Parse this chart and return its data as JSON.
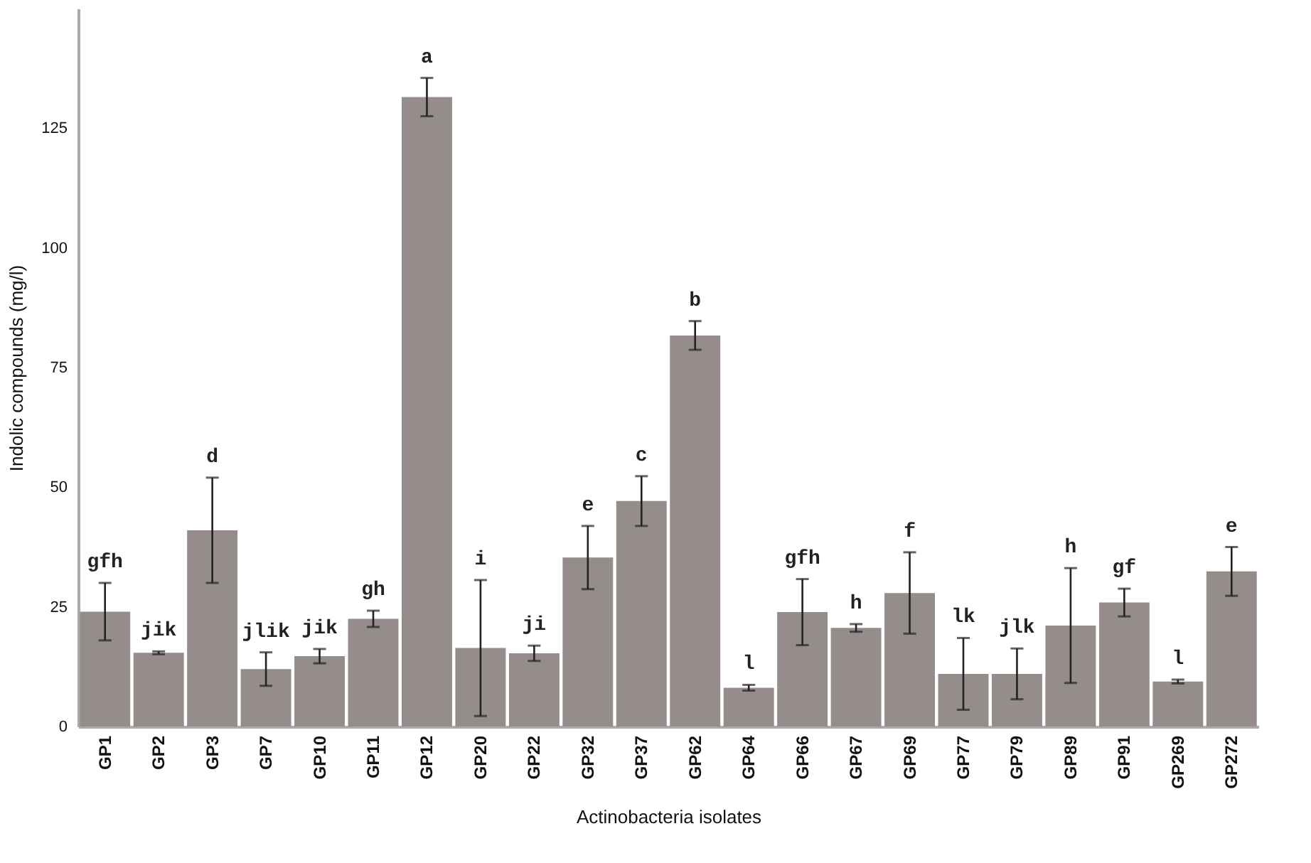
{
  "chart_data": {
    "type": "bar",
    "xlabel": "Actinobacteria isolates",
    "ylabel": "Indolic compounds (mg/l)",
    "categories": [
      "GP1",
      "GP2",
      "GP3",
      "GP7",
      "GP10",
      "GP11",
      "GP12",
      "GP20",
      "GP22",
      "GP32",
      "GP37",
      "GP62",
      "GP64",
      "GP66",
      "GP67",
      "GP69",
      "GP77",
      "GP79",
      "GP89",
      "GP91",
      "GP269",
      "GP272"
    ],
    "values": [
      24.0,
      15.4,
      41.0,
      12.0,
      14.7,
      22.5,
      131.5,
      16.4,
      15.3,
      35.3,
      47.1,
      81.7,
      8.1,
      23.9,
      20.6,
      27.9,
      11.0,
      11.0,
      21.1,
      25.9,
      9.4,
      32.4
    ],
    "errors": [
      6,
      0.3,
      11,
      3.5,
      1.5,
      1.7,
      4,
      14.2,
      1.6,
      6.6,
      5.2,
      3,
      0.6,
      6.9,
      0.8,
      8.5,
      7.5,
      5.3,
      12,
      2.9,
      0.4,
      5.1
    ],
    "color": "#958c8c",
    "ylim": [
      0,
      150
    ],
    "yticks": [
      0,
      25,
      50,
      75,
      100,
      125
    ],
    "grid": false,
    "annotations": [
      "gfh",
      "jik",
      "d",
      "jlik",
      "jik",
      "gh",
      "a",
      "i",
      "ji",
      "e",
      "c",
      "b",
      "l",
      "gfh",
      "h",
      "f",
      "lk",
      "jlk",
      "h",
      "gf",
      "l",
      "e"
    ]
  }
}
